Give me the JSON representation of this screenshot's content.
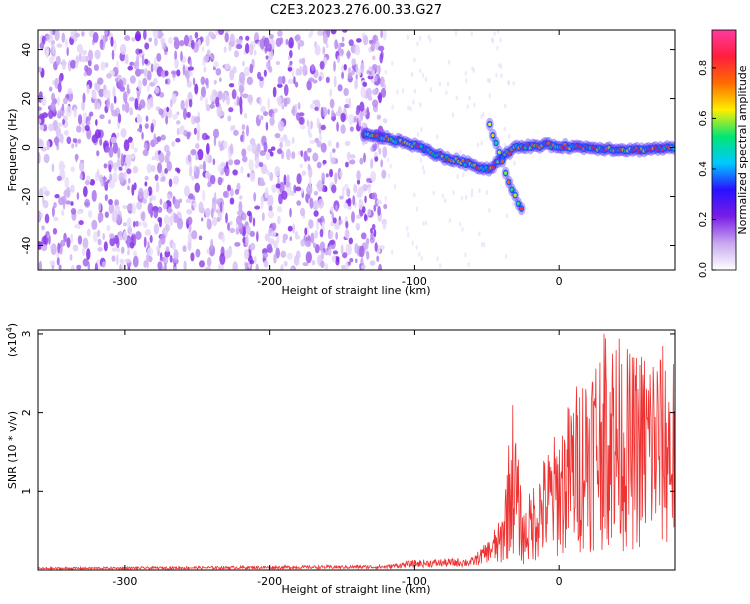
{
  "title": "C2E3.2023.276.00.33.G27",
  "chart_data": [
    {
      "type": "heatmap",
      "title": "C2E3.2023.276.00.33.G27",
      "xlabel": "Height of straight line (km)",
      "ylabel": "Frequency (Hz)",
      "xlim": [
        -360,
        80
      ],
      "ylim": [
        -50,
        48
      ],
      "x_ticks": [
        -300,
        -200,
        -100,
        0
      ],
      "y_ticks": [
        -40,
        -20,
        0,
        20,
        40
      ],
      "noise_region_x": [
        -360,
        -120
      ],
      "signal_ridge": [
        {
          "x": -135,
          "y": 5
        },
        {
          "x": -120,
          "y": 4
        },
        {
          "x": -100,
          "y": 1
        },
        {
          "x": -80,
          "y": -4
        },
        {
          "x": -60,
          "y": -7
        },
        {
          "x": -48,
          "y": -9
        },
        {
          "x": -40,
          "y": -4
        },
        {
          "x": -30,
          "y": 0
        },
        {
          "x": -10,
          "y": 1
        },
        {
          "x": 20,
          "y": 0
        },
        {
          "x": 50,
          "y": -1
        },
        {
          "x": 80,
          "y": 0
        }
      ],
      "secondary_branch": [
        {
          "x": -48,
          "y": 9
        },
        {
          "x": -40,
          "y": -5
        },
        {
          "x": -32,
          "y": -18
        },
        {
          "x": -25,
          "y": -26
        }
      ],
      "colorbar": {
        "label": "Normalized spectral amplitude",
        "range": [
          0,
          0.95
        ],
        "ticks": [
          "0.0",
          "0.2",
          "0.4",
          "0.6",
          "0.8"
        ],
        "colors": [
          "#ffffff",
          "#c8a8f0",
          "#7a1ee6",
          "#2a10ff",
          "#00c8ff",
          "#00e676",
          "#ffee00",
          "#ff6d00",
          "#ff1e3c",
          "#ff3aa0"
        ]
      },
      "grid": false
    },
    {
      "type": "line",
      "xlabel": "Height of straight line (km)",
      "ylabel": "SNR (10 * v/v)",
      "y_multiplier_label": "(x10",
      "y_multiplier_exponent": "4",
      "y_multiplier_close": ")",
      "xlim": [
        -360,
        80
      ],
      "ylim": [
        0,
        3.05
      ],
      "x_ticks": [
        -300,
        -200,
        -100,
        0
      ],
      "y_ticks": [
        1,
        2,
        3
      ],
      "color": "#ee3333",
      "series": [
        {
          "envelope": [
            {
              "x": -360,
              "y": 0.02
            },
            {
              "x": -120,
              "y": 0.04
            },
            {
              "x": -100,
              "y": 0.08
            },
            {
              "x": -60,
              "y": 0.1
            },
            {
              "x": -40,
              "y": 0.35
            },
            {
              "x": -32,
              "y": 1.2
            },
            {
              "x": -25,
              "y": 0.4
            },
            {
              "x": -15,
              "y": 0.7
            },
            {
              "x": 0,
              "y": 1.0
            },
            {
              "x": 20,
              "y": 1.5
            },
            {
              "x": 35,
              "y": 1.7
            },
            {
              "x": 50,
              "y": 1.5
            },
            {
              "x": 65,
              "y": 1.6
            },
            {
              "x": 80,
              "y": 1.5
            }
          ]
        }
      ],
      "grid": false
    }
  ]
}
